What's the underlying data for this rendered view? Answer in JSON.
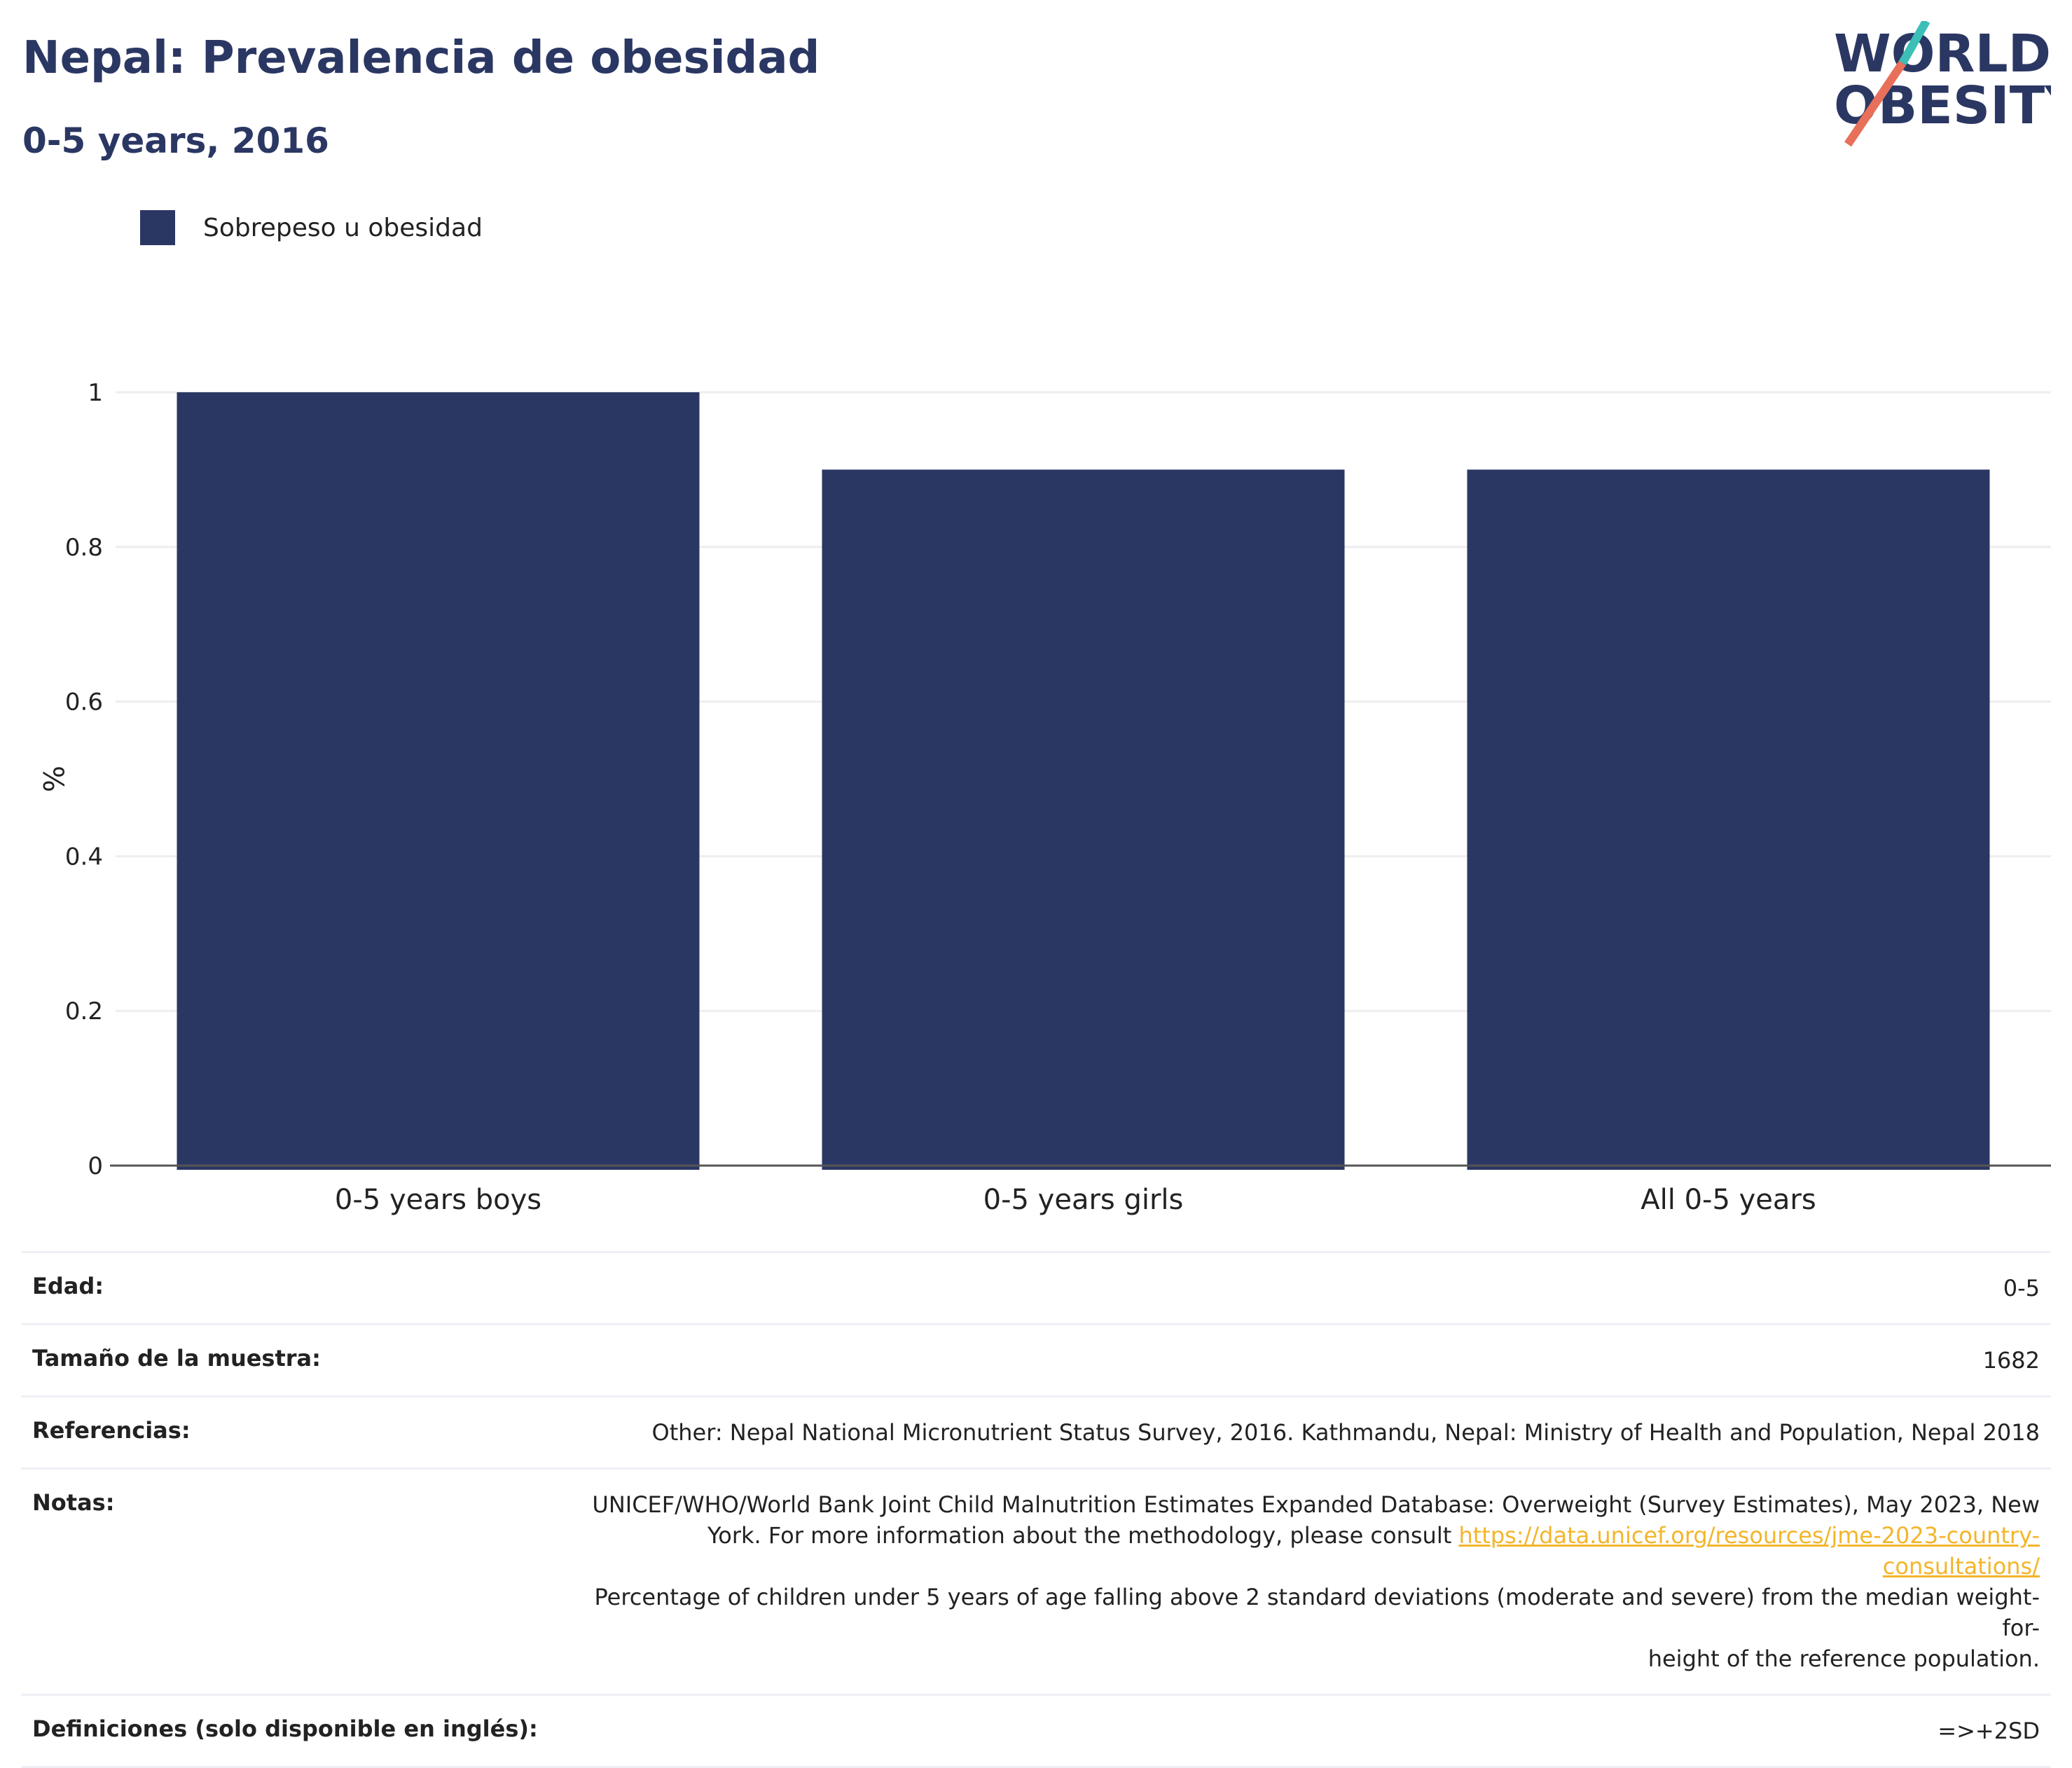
{
  "header": {
    "title": "Nepal: Prevalencia de obesidad",
    "subtitle": "0-5 years, 2016"
  },
  "logo": {
    "line1": "WORLD",
    "line2": "OBESITY",
    "colors": {
      "text": "#2b3763",
      "slash_top": "#3bbfb7",
      "slash_bottom": "#e8705a"
    }
  },
  "colors": {
    "bar": "#2b3763",
    "grid": "#eeeeee",
    "axis": "#555555"
  },
  "chart_data": {
    "type": "bar",
    "categories": [
      "0-5 years boys",
      "0-5 years girls",
      "All 0-5 years"
    ],
    "series": [
      {
        "name": "Sobrepeso u obesidad",
        "values": [
          1.0,
          0.9,
          0.9
        ]
      }
    ],
    "ylabel": "%",
    "ylim": [
      0,
      1.0
    ],
    "yticks": [
      0,
      0.2,
      0.4,
      0.6,
      0.8,
      1
    ],
    "ytick_labels": [
      "0",
      "0.2",
      "0.4",
      "0.6",
      "0.8",
      "1"
    ],
    "grid": true,
    "legend": "top-left"
  },
  "info": {
    "age_label": "Edad:",
    "age_value": "0-5",
    "sample_label": "Tamaño de la muestra:",
    "sample_value": "1682",
    "references_label": "Referencias:",
    "references_value": "Other: Nepal National Micronutrient Status Survey, 2016. Kathmandu, Nepal: Ministry of Health and Population, Nepal 2018",
    "notes_label": "Notas:",
    "notes_line1": "UNICEF/WHO/World Bank Joint Child Malnutrition Estimates Expanded Database: Overweight (Survey Estimates), May 2023, New",
    "notes_line2": "York. For more information about the methodology, please consult",
    "notes_link": "https://data.unicef.org/resources/jme-2023-country-consultations/",
    "notes_line3": "Percentage of children under 5 years of age falling above 2 standard deviations (moderate and severe) from the median weight-for-",
    "notes_line4": "height of the reference population.",
    "definitions_label": "Definiciones (solo disponible en inglés):",
    "definitions_value": "=>+2SD"
  }
}
